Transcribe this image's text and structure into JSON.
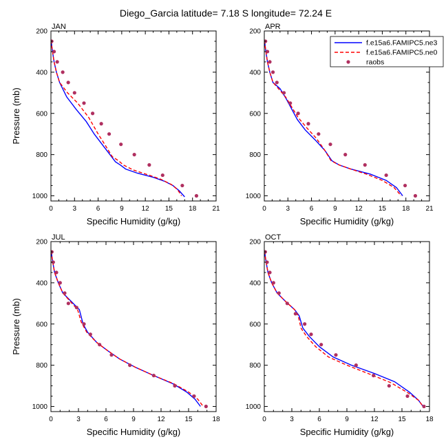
{
  "figure": {
    "title": "Diego_Garcia  latitude= 7.18 S longitude= 72.24 E"
  },
  "legend": {
    "placement": "top-right",
    "entries": [
      {
        "label": "f.e15a6.FAMIPC5.ne3",
        "style": "solid",
        "color": "#0000ff"
      },
      {
        "label": "f.e15a6.FAMIPC5.ne0",
        "style": "dashed",
        "color": "#ff0000"
      },
      {
        "label": "raobs",
        "style": "dot",
        "color": "#b03060"
      }
    ]
  },
  "chart_data": [
    {
      "type": "line",
      "panel": "JAN",
      "xlabel": "Specific Humidity (g/kg)",
      "ylabel": "Pressure (mb)",
      "xlim": [
        0,
        21
      ],
      "ylim": [
        200,
        1025
      ],
      "y_inverted": true,
      "xticks": [
        0,
        3,
        6,
        9,
        12,
        15,
        18,
        21
      ],
      "yticks": [
        200,
        400,
        600,
        800,
        1000
      ],
      "series": [
        {
          "name": "f.e15a6.FAMIPC5.ne3",
          "x": [
            0.05,
            0.1,
            0.2,
            0.4,
            0.7,
            1.1,
            2.0,
            3.2,
            4.5,
            5.5,
            6.7,
            7.5,
            8.2,
            8.8,
            9.5,
            11.0,
            13.0,
            14.5,
            15.5,
            16.3,
            17.0
          ],
          "y": [
            245,
            270,
            300,
            350,
            400,
            450,
            520,
            580,
            640,
            700,
            760,
            800,
            835,
            850,
            870,
            890,
            910,
            930,
            950,
            975,
            1005
          ]
        },
        {
          "name": "f.e15a6.FAMIPC5.ne0",
          "x": [
            0.05,
            0.1,
            0.2,
            0.4,
            0.7,
            1.1,
            2.1,
            3.4,
            4.8,
            6.0,
            7.0,
            7.8,
            8.6,
            9.2,
            10.5,
            12.5,
            14.0,
            15.3,
            16.1,
            16.6
          ],
          "y": [
            245,
            270,
            300,
            350,
            400,
            450,
            500,
            550,
            620,
            700,
            760,
            810,
            830,
            850,
            875,
            900,
            920,
            945,
            970,
            1000
          ]
        },
        {
          "name": "raobs",
          "x": [
            0.1,
            0.4,
            0.8,
            1.5,
            2.2,
            3.0,
            4.2,
            5.3,
            6.4,
            7.4,
            8.9,
            10.6,
            12.5,
            14.2,
            16.7,
            18.5
          ],
          "y": [
            250,
            300,
            350,
            400,
            450,
            500,
            550,
            600,
            650,
            700,
            750,
            800,
            850,
            900,
            950,
            1000
          ]
        }
      ]
    },
    {
      "type": "line",
      "panel": "APR",
      "xlabel": "Specific Humidity (g/kg)",
      "ylabel": "",
      "xlim": [
        0,
        21
      ],
      "ylim": [
        200,
        1025
      ],
      "y_inverted": true,
      "xticks": [
        0,
        3,
        6,
        9,
        12,
        15,
        18,
        21
      ],
      "yticks": [
        200,
        400,
        600,
        800,
        1000
      ],
      "series": [
        {
          "name": "f.e15a6.FAMIPC5.ne3",
          "x": [
            0.05,
            0.1,
            0.2,
            0.4,
            0.7,
            1.1,
            2.0,
            2.8,
            3.5,
            4.2,
            5.2,
            6.5,
            7.7,
            8.6,
            9.5,
            11.0,
            13.5,
            15.5,
            16.8,
            17.6
          ],
          "y": [
            245,
            270,
            300,
            350,
            400,
            450,
            480,
            530,
            580,
            630,
            680,
            730,
            780,
            830,
            850,
            870,
            895,
            925,
            960,
            1000
          ]
        },
        {
          "name": "f.e15a6.FAMIPC5.ne0",
          "x": [
            0.05,
            0.1,
            0.2,
            0.4,
            0.7,
            1.1,
            1.8,
            2.7,
            3.5,
            4.3,
            5.4,
            6.6,
            7.7,
            8.5,
            9.5,
            11.0,
            13.0,
            15.0,
            16.5,
            17.4
          ],
          "y": [
            245,
            270,
            300,
            350,
            400,
            450,
            480,
            520,
            570,
            620,
            670,
            720,
            780,
            830,
            850,
            870,
            895,
            925,
            960,
            1000
          ]
        },
        {
          "name": "raobs",
          "x": [
            0.15,
            0.4,
            0.7,
            1.1,
            1.6,
            2.5,
            3.3,
            4.3,
            5.6,
            6.9,
            8.4,
            10.3,
            12.8,
            15.5,
            17.9,
            19.2
          ],
          "y": [
            250,
            300,
            350,
            400,
            450,
            500,
            550,
            600,
            650,
            700,
            750,
            800,
            850,
            900,
            950,
            1000
          ]
        }
      ]
    },
    {
      "type": "line",
      "panel": "JUL",
      "xlabel": "Specific Humidity (g/kg)",
      "ylabel": "Pressure (mb)",
      "xlim": [
        0,
        18
      ],
      "ylim": [
        200,
        1025
      ],
      "y_inverted": true,
      "xticks": [
        0,
        3,
        6,
        9,
        12,
        15,
        18
      ],
      "yticks": [
        200,
        400,
        600,
        800,
        1000
      ],
      "series": [
        {
          "name": "f.e15a6.FAMIPC5.ne3",
          "x": [
            0.05,
            0.1,
            0.2,
            0.4,
            0.8,
            1.3,
            2.2,
            3.1,
            3.5,
            4.0,
            5.0,
            6.2,
            7.5,
            9.2,
            11.2,
            13.3,
            14.8,
            15.7,
            16.3
          ],
          "y": [
            245,
            270,
            300,
            350,
            400,
            450,
            490,
            530,
            600,
            640,
            690,
            730,
            770,
            810,
            850,
            890,
            930,
            965,
            1000
          ]
        },
        {
          "name": "f.e15a6.FAMIPC5.ne0",
          "x": [
            0.05,
            0.1,
            0.2,
            0.4,
            0.8,
            1.3,
            2.1,
            2.9,
            3.3,
            3.9,
            5.0,
            6.2,
            7.5,
            9.2,
            11.2,
            13.4,
            15.0,
            16.0,
            16.6
          ],
          "y": [
            245,
            270,
            300,
            350,
            400,
            450,
            490,
            530,
            590,
            640,
            690,
            730,
            770,
            810,
            850,
            890,
            930,
            965,
            1000
          ]
        },
        {
          "name": "raobs",
          "x": [
            0.1,
            0.25,
            0.6,
            1.0,
            1.5,
            1.9,
            2.8,
            3.6,
            4.3,
            5.3,
            6.6,
            8.6,
            11.2,
            13.5,
            15.6,
            16.9
          ],
          "y": [
            250,
            300,
            350,
            400,
            450,
            500,
            520,
            600,
            650,
            700,
            750,
            800,
            850,
            900,
            950,
            1000
          ]
        }
      ]
    },
    {
      "type": "line",
      "panel": "OCT",
      "xlabel": "Specific Humidity (g/kg)",
      "ylabel": "",
      "xlim": [
        0,
        18
      ],
      "ylim": [
        200,
        1025
      ],
      "y_inverted": true,
      "xticks": [
        0,
        3,
        6,
        9,
        12,
        15,
        18
      ],
      "yticks": [
        200,
        400,
        600,
        800,
        1000
      ],
      "series": [
        {
          "name": "f.e15a6.FAMIPC5.ne3",
          "x": [
            0.05,
            0.1,
            0.2,
            0.4,
            0.8,
            1.4,
            2.3,
            3.3,
            3.8,
            4.2,
            4.9,
            6.0,
            7.5,
            9.5,
            12.0,
            14.2,
            15.8,
            16.8,
            17.3
          ],
          "y": [
            245,
            270,
            300,
            350,
            400,
            450,
            490,
            530,
            560,
            620,
            660,
            710,
            760,
            800,
            840,
            880,
            930,
            970,
            1000
          ]
        },
        {
          "name": "f.e15a6.FAMIPC5.ne0",
          "x": [
            0.05,
            0.1,
            0.2,
            0.4,
            0.8,
            1.4,
            2.3,
            3.3,
            3.7,
            4.0,
            4.6,
            5.6,
            7.0,
            9.0,
            11.3,
            13.8,
            15.7,
            16.8,
            17.3
          ],
          "y": [
            245,
            270,
            300,
            350,
            400,
            450,
            490,
            530,
            560,
            620,
            660,
            710,
            760,
            800,
            840,
            885,
            935,
            970,
            1000
          ]
        },
        {
          "name": "raobs",
          "x": [
            0.1,
            0.3,
            0.6,
            1.0,
            1.6,
            2.5,
            3.4,
            4.4,
            5.1,
            6.2,
            7.8,
            10.0,
            11.9,
            13.6,
            15.6,
            17.4
          ],
          "y": [
            250,
            300,
            350,
            400,
            450,
            500,
            550,
            600,
            650,
            700,
            750,
            800,
            850,
            900,
            950,
            1000
          ]
        }
      ]
    }
  ]
}
